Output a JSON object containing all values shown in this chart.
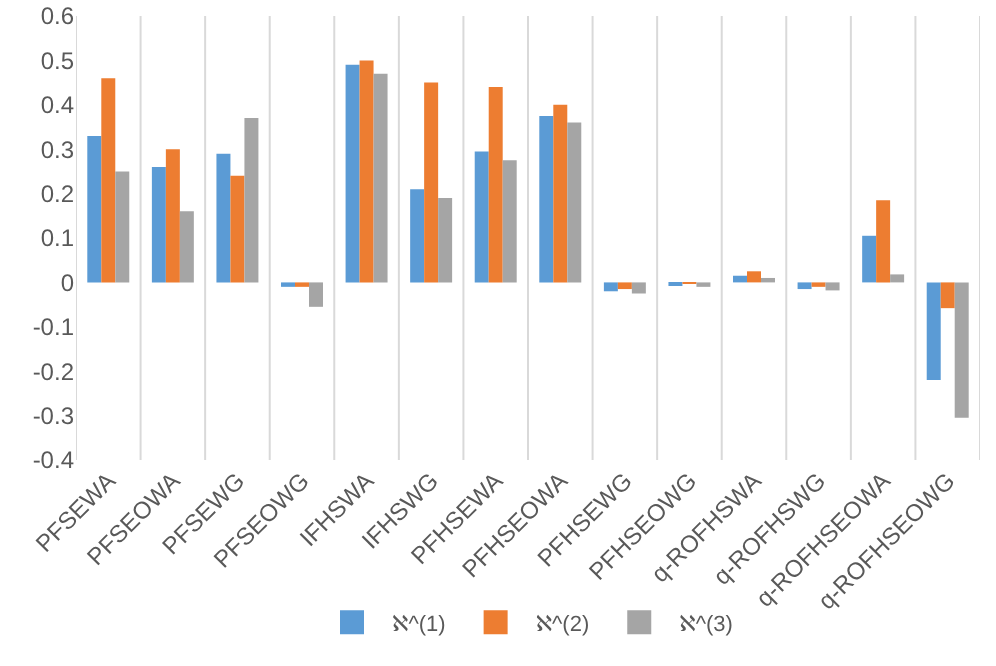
{
  "chart_data": {
    "type": "bar",
    "categories": [
      "PFSEWA",
      "PFSEOWA",
      "PFSEWG",
      "PFSEOWG",
      "IFHSWA",
      "IFHSWG",
      "PFHSEWA",
      "PFHSEOWA",
      "PFHSEWG",
      "PFHSEOWG",
      "q-ROFHSWA",
      "q-ROFHSWG",
      "q-ROFHSEOWA",
      "q-ROFHSEOWG"
    ],
    "series": [
      {
        "name": "ℵ^(1)",
        "color": "#5b9bd5",
        "values": [
          0.33,
          0.26,
          0.29,
          -0.01,
          0.49,
          0.21,
          0.295,
          0.375,
          -0.02,
          -0.007,
          0.015,
          -0.015,
          0.105,
          -0.22
        ]
      },
      {
        "name": "ℵ^(2)",
        "color": "#ed7d31",
        "values": [
          0.46,
          0.3,
          0.24,
          -0.01,
          0.5,
          0.45,
          0.44,
          0.4,
          -0.015,
          -0.003,
          0.025,
          -0.01,
          0.185,
          -0.058
        ]
      },
      {
        "name": "ℵ^(3)",
        "color": "#a5a5a5",
        "values": [
          0.25,
          0.16,
          0.37,
          -0.055,
          0.47,
          0.19,
          0.275,
          0.36,
          -0.025,
          -0.01,
          0.01,
          -0.018,
          0.018,
          -0.305
        ]
      }
    ],
    "ylim": [
      -0.4,
      0.6
    ],
    "yticks": [
      {
        "value": -0.4,
        "label": "-0.4"
      },
      {
        "value": -0.3,
        "label": "-0.3"
      },
      {
        "value": -0.2,
        "label": "-0.2"
      },
      {
        "value": -0.1,
        "label": "-0.1"
      },
      0,
      0.1,
      0.2,
      0.3,
      0.4,
      0.5,
      0.6
    ],
    "grid": "x",
    "legend": "bottom"
  }
}
